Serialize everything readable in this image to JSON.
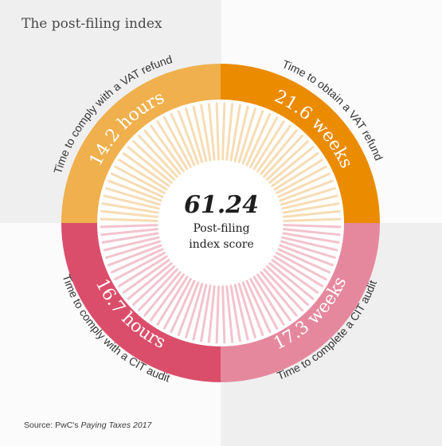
{
  "title": "The post-filing index",
  "center": {
    "value": "61.24",
    "label_line1": "Post-filing",
    "label_line2": "index score"
  },
  "segments": [
    {
      "position": "top-left",
      "color": "#efb04d",
      "ray_color": "#f6dcb4",
      "value": "14.2 hours",
      "caption": "Time to comply with a VAT refund"
    },
    {
      "position": "top-right",
      "color": "#eb8b00",
      "ray_color": "#f6dcb4",
      "value": "21.6 weeks",
      "caption": "Time to obtain a VAT refund"
    },
    {
      "position": "bottom-left",
      "color": "#db4e6b",
      "ray_color": "#f2c3cd",
      "value": "16.7 hours",
      "caption": "Time to comply with a CIT audit"
    },
    {
      "position": "bottom-right",
      "color": "#e6889d",
      "ray_color": "#f2c3cd",
      "value": "17.3 weeks",
      "caption": "Time to complete a CIT audit"
    }
  ],
  "source": {
    "prefix": "Source: PwC's ",
    "publication": "Paying Taxes 2017"
  }
}
